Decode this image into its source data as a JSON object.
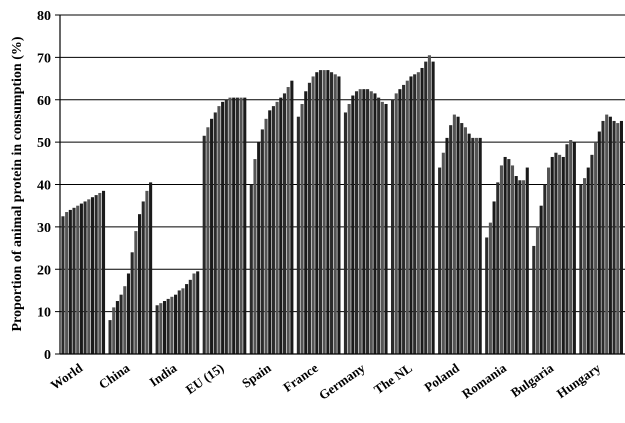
{
  "chart_data": {
    "type": "bar",
    "ylabel": "Proportion of animal protein in consumption  (%)",
    "xlabel": "",
    "ylim": [
      0,
      80
    ],
    "yticks": [
      0,
      10,
      20,
      30,
      40,
      50,
      60,
      70,
      80
    ],
    "grid": "horizontal",
    "bar_color": "#2b2b2b",
    "categories": [
      "World",
      "China",
      "India",
      "EU (15)",
      "Spain",
      "France",
      "Germany",
      "The NL",
      "Poland",
      "Romania",
      "Bulgaria",
      "Hungary"
    ],
    "series": [
      {
        "values": [
          32.5,
          33.5,
          34,
          34.5,
          35,
          35.5,
          36,
          36.5,
          37,
          37.5,
          38,
          38.5
        ]
      },
      {
        "values": [
          8,
          11,
          12.5,
          14,
          16,
          19,
          24,
          29,
          33,
          36,
          38.5,
          40.5
        ]
      },
      {
        "values": [
          11.5,
          12,
          12.5,
          13,
          13.5,
          14,
          15,
          15.5,
          16.5,
          17.5,
          19,
          19.5
        ]
      },
      {
        "values": [
          51.5,
          53.5,
          55.5,
          57,
          58.5,
          59.5,
          60,
          60.5,
          60.5,
          60.5,
          60.5,
          60.5
        ]
      },
      {
        "values": [
          40,
          46,
          50,
          53,
          55.5,
          57.5,
          58.5,
          59.5,
          60.5,
          61.5,
          63,
          64.5
        ]
      },
      {
        "values": [
          56,
          59,
          62,
          64,
          65.5,
          66.5,
          67,
          67,
          67,
          66.5,
          66,
          65.5
        ]
      },
      {
        "values": [
          57,
          59,
          61,
          62,
          62.5,
          62.5,
          62.5,
          62,
          61.5,
          60.5,
          59.5,
          59
        ]
      },
      {
        "values": [
          60,
          61.5,
          62.5,
          63.5,
          64.5,
          65.5,
          66,
          66.5,
          67.5,
          69,
          70.5,
          69
        ]
      },
      {
        "values": [
          44,
          47.5,
          51,
          54,
          56.5,
          56,
          54.5,
          53.5,
          52,
          51,
          51,
          51
        ]
      },
      {
        "values": [
          27.5,
          31,
          36,
          40.5,
          44.5,
          46.5,
          46,
          44.5,
          42,
          41,
          41,
          44
        ]
      },
      {
        "values": [
          25.5,
          30,
          35,
          40,
          44,
          46.5,
          47.5,
          47,
          46.5,
          49.5,
          50.5,
          50
        ]
      },
      {
        "values": [
          40,
          41.5,
          44,
          47,
          50,
          52.5,
          55,
          56.5,
          56,
          55,
          54.5,
          55
        ]
      }
    ]
  }
}
